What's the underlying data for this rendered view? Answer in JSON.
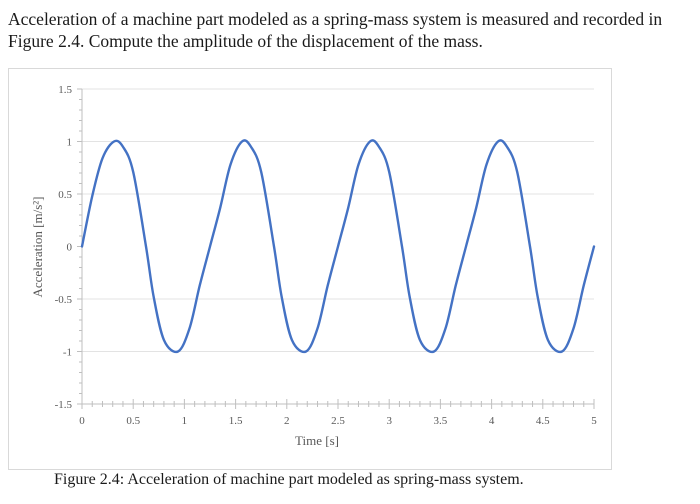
{
  "problem": {
    "text": "Acceleration of a machine part modeled as a spring-mass system is measured and recorded in Figure 2.4. Compute the amplitude of the displacement of the mass."
  },
  "figure": {
    "caption": "Figure 2.4: Acceleration of machine part modeled as spring-mass system."
  },
  "chart_data": {
    "type": "line",
    "title": "",
    "xlabel": "Time [s]",
    "ylabel": "Acceleration [m/s²]",
    "xlim": [
      0,
      5
    ],
    "ylim": [
      -1.5,
      1.5
    ],
    "x_ticks": [
      "0",
      "0.5",
      "1",
      "1.5",
      "2",
      "2.5",
      "3",
      "3.5",
      "4",
      "4.5",
      "5"
    ],
    "y_ticks": [
      "1.5",
      "1",
      "0.5",
      "0",
      "-0.5",
      "-1",
      "-1.5"
    ],
    "grid": "horizontal",
    "legend": "none",
    "series": [
      {
        "color": "#4472c4",
        "x": [
          0,
          0.1,
          0.2,
          0.3125,
          0.4,
          0.5,
          0.625,
          0.7,
          0.8,
          0.9375,
          1.05,
          1.15,
          1.25,
          1.35,
          1.45,
          1.5625,
          1.65,
          1.75,
          1.875,
          1.95,
          2.05,
          2.1875,
          2.3,
          2.4,
          2.5,
          2.6,
          2.7,
          2.8125,
          2.9,
          3.0,
          3.125,
          3.2,
          3.3,
          3.4375,
          3.55,
          3.65,
          3.75,
          3.85,
          3.95,
          4.0625,
          4.15,
          4.25,
          4.375,
          4.45,
          4.55,
          4.6875,
          4.8,
          4.9,
          5.0
        ],
        "y": [
          0,
          0.48,
          0.84,
          1.0,
          0.95,
          0.71,
          0,
          -0.48,
          -0.89,
          -1.0,
          -0.78,
          -0.37,
          0,
          0.37,
          0.78,
          1.0,
          0.95,
          0.71,
          0,
          -0.48,
          -0.89,
          -1.0,
          -0.78,
          -0.37,
          0,
          0.37,
          0.78,
          1.0,
          0.95,
          0.71,
          0,
          -0.48,
          -0.89,
          -1.0,
          -0.78,
          -0.37,
          0,
          0.37,
          0.78,
          1.0,
          0.95,
          0.71,
          0,
          -0.48,
          -0.89,
          -1.0,
          -0.78,
          -0.37,
          0
        ]
      }
    ]
  }
}
